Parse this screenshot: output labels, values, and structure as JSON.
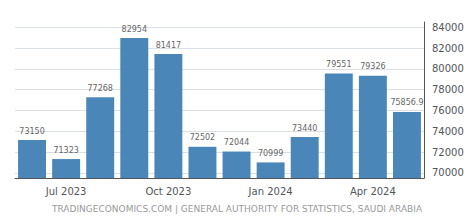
{
  "chart_data": {
    "type": "bar",
    "categories": [
      null,
      "Jul 2023",
      null,
      null,
      "Oct 2023",
      null,
      null,
      "Jan 2024",
      null,
      null,
      "Apr 2024",
      null
    ],
    "values": [
      73150,
      71323,
      77268,
      82954,
      81417,
      72502,
      72044,
      70999,
      73440,
      79551,
      79326,
      75856.9
    ],
    "color": "#4a86b8",
    "ylim": [
      69500,
      84500
    ],
    "yticks": [
      70000,
      72000,
      74000,
      76000,
      78000,
      80000,
      82000,
      84000
    ],
    "grid": true,
    "data_labels": true,
    "annotations": [
      "TRADINGECONOMICS.COM | GENERAL AUTHORITY FOR STATISTICS, SAUDI ARABIA"
    ]
  }
}
